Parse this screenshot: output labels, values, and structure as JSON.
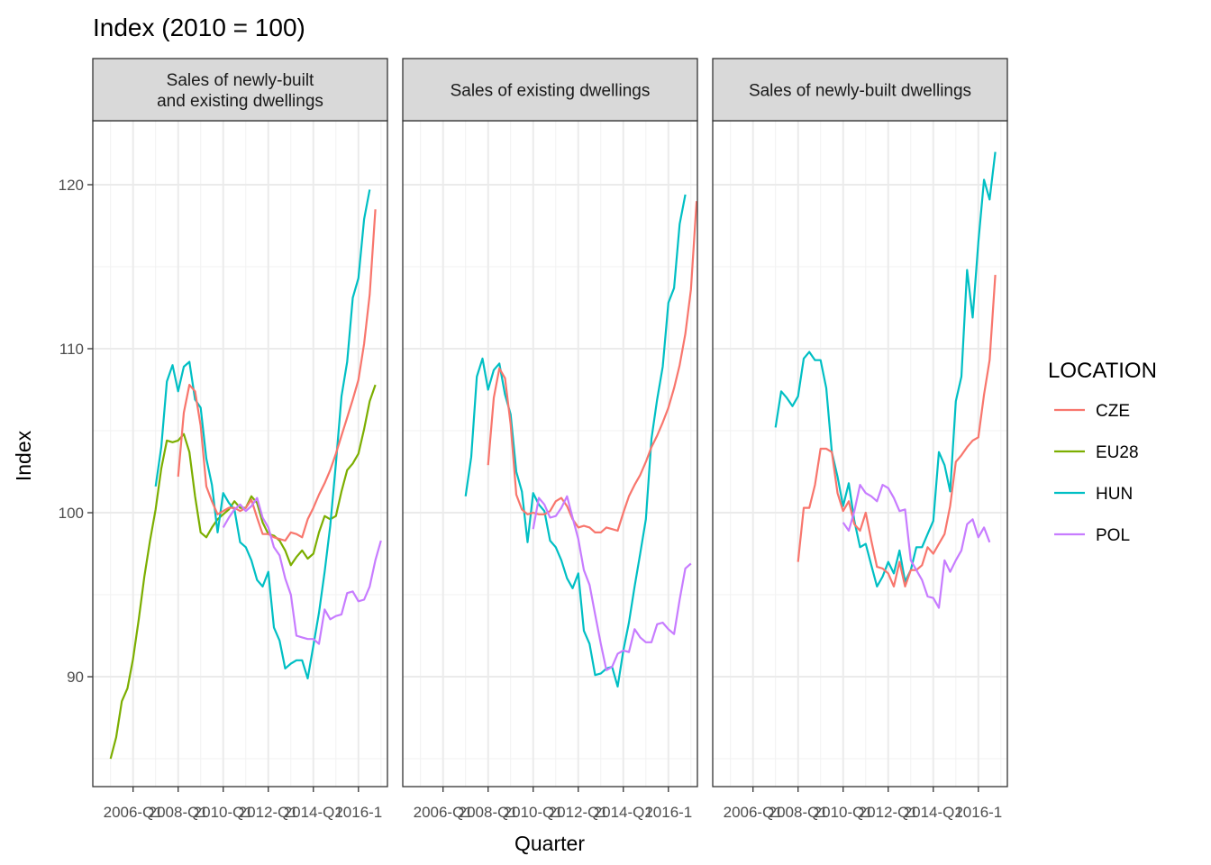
{
  "chart_data": {
    "type": "line",
    "title": "Index (2010 = 100)",
    "xlabel": "Quarter",
    "ylabel": "Index",
    "ylim": [
      83.3,
      123.9
    ],
    "yticks": [
      90,
      100,
      110,
      120
    ],
    "x_start": "2005-Q1",
    "x_tick_labels": [
      "2006-Q1",
      "2008-Q1",
      "2010-Q1",
      "2012-Q1",
      "2014-Q1",
      "2016-Q1"
    ],
    "x_tick_rendered": [
      "2006-Q1",
      "2008-Q1",
      "2010-Q1",
      "2012-Q1",
      "2014-Q1",
      "2016-1"
    ],
    "grid": true,
    "legend": {
      "title": "LOCATION",
      "position": "right",
      "entries": [
        "CZE",
        "EU28",
        "HUN",
        "POL"
      ]
    },
    "series_colors": {
      "CZE": "#F8766D",
      "EU28": "#7CAE00",
      "HUN": "#00BFC4",
      "POL": "#C77CFF"
    },
    "panels": [
      {
        "strip": [
          "Sales of newly-built",
          "and existing dwellings"
        ],
        "series": [
          {
            "name": "EU28",
            "start": "2005-Q1",
            "values": [
              85.0,
              86.3,
              88.5,
              89.3,
              91.1,
              93.5,
              96.1,
              98.3,
              100.2,
              102.7,
              104.4,
              104.3,
              104.4,
              104.8,
              103.7,
              101.0,
              98.8,
              98.5,
              99.1,
              99.6,
              99.9,
              100.2,
              100.7,
              100.3,
              100.3,
              101.0,
              100.6,
              99.4,
              98.7,
              98.6,
              98.3,
              97.7,
              96.8,
              97.3,
              97.7,
              97.2,
              97.5,
              98.8,
              99.8,
              99.6,
              99.8,
              101.3,
              102.6,
              103.0,
              103.6,
              105.1,
              106.8,
              107.8
            ]
          },
          {
            "name": "HUN",
            "start": "2007-Q1",
            "values": [
              101.6,
              104.0,
              108.0,
              109.0,
              107.4,
              108.9,
              109.2,
              106.9,
              106.4,
              103.3,
              101.7,
              98.8,
              101.2,
              100.6,
              100.2,
              98.2,
              97.9,
              97.1,
              95.9,
              95.5,
              96.4,
              93.0,
              92.2,
              90.5,
              90.8,
              91.0,
              91.0,
              89.9,
              91.9,
              93.9,
              96.4,
              99.2,
              103.0,
              107.1,
              109.2,
              113.1,
              114.3,
              117.9,
              119.7
            ]
          },
          {
            "name": "CZE",
            "start": "2008-Q1",
            "values": [
              102.2,
              106.1,
              107.8,
              107.4,
              105.3,
              101.6,
              100.7,
              99.9,
              100.1,
              100.3,
              100.3,
              100.1,
              100.3,
              100.8,
              99.7,
              98.7,
              98.7,
              98.5,
              98.4,
              98.3,
              98.8,
              98.7,
              98.5,
              99.6,
              100.3,
              101.1,
              101.8,
              102.6,
              103.6,
              104.7,
              105.8,
              106.9,
              108.1,
              110.3,
              113.3,
              118.5
            ]
          },
          {
            "name": "POL",
            "start": "2010-Q1",
            "values": [
              99.1,
              99.7,
              100.2,
              100.5,
              100.1,
              100.4,
              100.9,
              99.7,
              99.1,
              97.9,
              97.4,
              96.0,
              95.0,
              92.5,
              92.4,
              92.3,
              92.3,
              92.0,
              94.1,
              93.5,
              93.7,
              93.8,
              95.1,
              95.2,
              94.6,
              94.7,
              95.5,
              97.1,
              98.3
            ]
          }
        ]
      },
      {
        "strip": [
          "Sales of existing dwellings"
        ],
        "series": [
          {
            "name": "HUN",
            "start": "2007-Q1",
            "values": [
              101.0,
              103.4,
              108.3,
              109.4,
              107.5,
              108.7,
              109.1,
              107.2,
              106.0,
              102.5,
              101.3,
              98.2,
              101.2,
              100.5,
              100.1,
              98.3,
              97.9,
              97.1,
              96.0,
              95.4,
              96.3,
              92.8,
              92.0,
              90.1,
              90.2,
              90.5,
              90.6,
              89.4,
              91.6,
              93.3,
              95.5,
              97.5,
              99.6,
              104.5,
              106.9,
              108.9,
              112.8,
              113.7,
              117.6,
              119.4
            ]
          },
          {
            "name": "CZE",
            "start": "2008-Q1",
            "values": [
              102.9,
              107.0,
              108.8,
              108.2,
              105.4,
              101.1,
              100.2,
              99.9,
              100.0,
              99.9,
              99.9,
              100.1,
              100.7,
              100.9,
              100.4,
              99.6,
              99.1,
              99.2,
              99.1,
              98.8,
              98.8,
              99.1,
              99.0,
              98.9,
              100.0,
              101.0,
              101.7,
              102.3,
              103.1,
              104.0,
              104.7,
              105.5,
              106.4,
              107.6,
              109.0,
              110.9,
              113.6,
              119.0
            ]
          },
          {
            "name": "POL",
            "start": "2010-Q1",
            "values": [
              99.0,
              100.9,
              100.5,
              99.7,
              99.8,
              100.3,
              101.0,
              99.7,
              98.4,
              96.5,
              95.6,
              93.8,
              92.0,
              90.4,
              90.6,
              91.4,
              91.6,
              91.5,
              92.9,
              92.4,
              92.1,
              92.1,
              93.2,
              93.3,
              92.9,
              92.6,
              94.7,
              96.6,
              96.9
            ]
          }
        ]
      },
      {
        "strip": [
          "Sales of newly-built dwellings"
        ],
        "series": [
          {
            "name": "HUN",
            "start": "2007-Q1",
            "values": [
              105.2,
              107.4,
              107.0,
              106.5,
              107.1,
              109.4,
              109.8,
              109.3,
              109.3,
              107.6,
              103.7,
              102.2,
              100.4,
              101.8,
              99.5,
              97.9,
              98.1,
              96.8,
              95.5,
              96.1,
              97.0,
              96.3,
              97.7,
              95.8,
              96.5,
              97.9,
              97.9,
              98.7,
              99.5,
              103.7,
              102.9,
              101.3,
              106.8,
              108.3,
              114.8,
              111.9,
              116.5,
              120.3,
              119.1,
              122.0
            ]
          },
          {
            "name": "CZE",
            "start": "2008-Q1",
            "values": [
              97.0,
              100.3,
              100.3,
              101.7,
              103.9,
              103.9,
              103.7,
              101.2,
              100.1,
              100.7,
              99.3,
              98.9,
              100.0,
              98.3,
              96.7,
              96.6,
              96.3,
              95.5,
              97.0,
              95.5,
              96.5,
              96.5,
              96.8,
              97.9,
              97.5,
              98.1,
              98.7,
              100.4,
              103.1,
              103.5,
              104.0,
              104.4,
              104.6,
              107.2,
              109.3,
              114.5
            ]
          },
          {
            "name": "POL",
            "start": "2010-Q1",
            "values": [
              99.4,
              98.9,
              100.1,
              101.7,
              101.2,
              101.0,
              100.7,
              101.7,
              101.5,
              100.9,
              100.1,
              100.2,
              97.1,
              96.5,
              95.9,
              94.9,
              94.8,
              94.2,
              97.1,
              96.4,
              97.1,
              97.7,
              99.3,
              99.6,
              98.5,
              99.1,
              98.2
            ]
          }
        ]
      }
    ]
  }
}
